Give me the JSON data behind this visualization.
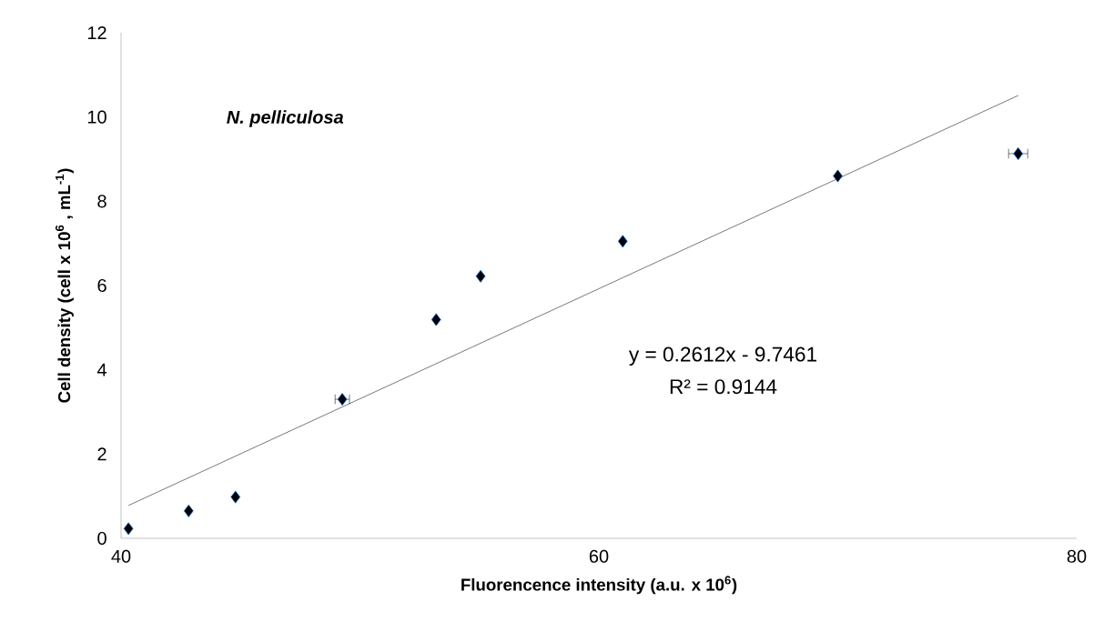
{
  "chart_data": {
    "type": "scatter",
    "xlabel": "Fluorencence intensity (a.u. x 10$^{6}$)",
    "ylabel": "Cell density (cell x 10$^{6}$ , mL$^{-1}$)",
    "xlim": [
      40,
      80
    ],
    "xticks": [
      40,
      60,
      80
    ],
    "ylim": [
      0,
      12
    ],
    "yticks": [
      0,
      2,
      4,
      6,
      8,
      10,
      12
    ],
    "grid": false,
    "marker": "diamond",
    "series": [
      {
        "color": "#000000",
        "x": [
          40.31,
          42.83,
          44.79,
          49.26,
          53.19,
          55.05,
          61.0,
          70.0,
          77.55
        ],
        "values": [
          0.23,
          0.65,
          0.98,
          3.3,
          5.19,
          6.22,
          7.05,
          8.6,
          9.13
        ],
        "xerrors": [
          null,
          null,
          null,
          0.3,
          null,
          null,
          null,
          null,
          0.4
        ]
      },
      {
        "type": "line",
        "color": "#000000",
        "marker": "none",
        "line_style": "solid",
        "x": [
          40.31,
          77.55
        ],
        "values": [
          0.78,
          10.51
        ]
      }
    ],
    "annotations": [
      "N. pelliculosa",
      "y = 0.2612x - 9.7461",
      "R² = 0.9144"
    ]
  }
}
